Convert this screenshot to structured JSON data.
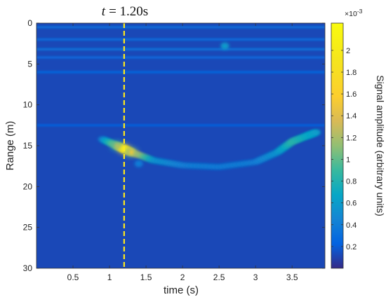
{
  "chart_data": {
    "type": "heatmap",
    "title": "t = 1.20s",
    "title_italic_part": "t",
    "title_rest": "= 1.20s",
    "xlabel": "time (s)",
    "ylabel": "Range (m)",
    "xlim": [
      0,
      3.95
    ],
    "ylim": [
      30,
      0
    ],
    "x_ticks": [
      0.5,
      1,
      1.5,
      2,
      2.5,
      3,
      3.5
    ],
    "x_tick_labels": [
      "0.5",
      "1",
      "1.5",
      "2",
      "2.5",
      "3",
      "3.5"
    ],
    "y_ticks": [
      0,
      5,
      10,
      15,
      20,
      25,
      30
    ],
    "y_tick_labels": [
      "0",
      "5",
      "10",
      "15",
      "20",
      "25",
      "30"
    ],
    "marker_time": 1.2,
    "colorbar": {
      "label": "Signal amplitude (arbitrary units)",
      "exponent_label": "×10",
      "exponent_power": "-3",
      "min": 0,
      "max": 2.25,
      "ticks": [
        0.2,
        0.4,
        0.6,
        0.8,
        1,
        1.2,
        1.4,
        1.6,
        1.8,
        2
      ],
      "tick_labels": [
        "0.2",
        "0.4",
        "0.6",
        "0.8",
        "1",
        "1.2",
        "1.4",
        "1.6",
        "1.8",
        "2"
      ],
      "colormap": "parula"
    },
    "background_level": 0.12,
    "horizontal_bands": [
      {
        "range_m": 0.5,
        "level": 0.32
      },
      {
        "range_m": 2.0,
        "level": 0.3
      },
      {
        "range_m": 3.2,
        "level": 0.34
      },
      {
        "range_m": 4.2,
        "level": 0.28
      },
      {
        "range_m": 6.0,
        "level": 0.26
      },
      {
        "range_m": 12.5,
        "level": 0.22
      }
    ],
    "target_track": [
      {
        "time_s": 0.9,
        "range_m": 14.2,
        "amplitude": 0.45
      },
      {
        "time_s": 1.1,
        "range_m": 15.0,
        "amplitude": 1.2
      },
      {
        "time_s": 1.2,
        "range_m": 15.4,
        "amplitude": 2.2
      },
      {
        "time_s": 1.3,
        "range_m": 15.8,
        "amplitude": 1.5
      },
      {
        "time_s": 1.6,
        "range_m": 16.8,
        "amplitude": 0.55
      },
      {
        "time_s": 2.0,
        "range_m": 17.4,
        "amplitude": 0.42
      },
      {
        "time_s": 2.5,
        "range_m": 17.6,
        "amplitude": 0.4
      },
      {
        "time_s": 3.0,
        "range_m": 17.0,
        "amplitude": 0.42
      },
      {
        "time_s": 3.3,
        "range_m": 15.8,
        "amplitude": 0.55
      },
      {
        "time_s": 3.5,
        "range_m": 14.5,
        "amplitude": 0.85
      },
      {
        "time_s": 3.7,
        "range_m": 13.8,
        "amplitude": 0.7
      },
      {
        "time_s": 3.85,
        "range_m": 13.3,
        "amplitude": 0.6
      }
    ],
    "features": [
      {
        "time_s": 2.58,
        "range_m": 2.8,
        "amplitude": 0.6
      },
      {
        "time_s": 1.4,
        "range_m": 17.2,
        "amplitude": 0.4
      }
    ]
  }
}
